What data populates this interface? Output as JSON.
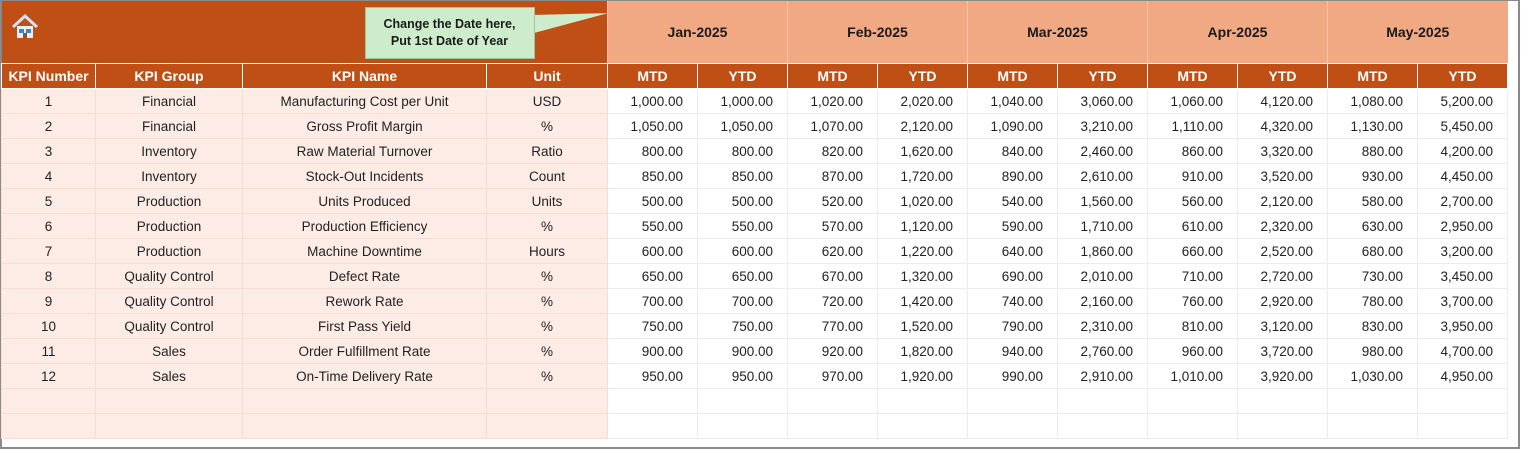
{
  "callout": {
    "line1": "Change the Date here,",
    "line2": "Put 1st Date of Year"
  },
  "icons": {
    "home": "home-icon"
  },
  "colors": {
    "header": "#c04f15",
    "month": "#f1a983",
    "label_bg": "#fdece6",
    "callout": "#cdeccb"
  },
  "months": [
    "Jan-2025",
    "Feb-2025",
    "Mar-2025",
    "Apr-2025",
    "May-2025"
  ],
  "headers": {
    "kpi_number": "KPI Number",
    "kpi_group": "KPI Group",
    "kpi_name": "KPI Name",
    "unit": "Unit",
    "mtd": "MTD",
    "ytd": "YTD"
  },
  "rows": [
    {
      "num": "1",
      "group": "Financial",
      "name": "Manufacturing Cost per Unit",
      "unit": "USD",
      "values": [
        "1,000.00",
        "1,000.00",
        "1,020.00",
        "2,020.00",
        "1,040.00",
        "3,060.00",
        "1,060.00",
        "4,120.00",
        "1,080.00",
        "5,200.00"
      ]
    },
    {
      "num": "2",
      "group": "Financial",
      "name": "Gross Profit Margin",
      "unit": "%",
      "values": [
        "1,050.00",
        "1,050.00",
        "1,070.00",
        "2,120.00",
        "1,090.00",
        "3,210.00",
        "1,110.00",
        "4,320.00",
        "1,130.00",
        "5,450.00"
      ]
    },
    {
      "num": "3",
      "group": "Inventory",
      "name": "Raw Material Turnover",
      "unit": "Ratio",
      "values": [
        "800.00",
        "800.00",
        "820.00",
        "1,620.00",
        "840.00",
        "2,460.00",
        "860.00",
        "3,320.00",
        "880.00",
        "4,200.00"
      ]
    },
    {
      "num": "4",
      "group": "Inventory",
      "name": "Stock-Out Incidents",
      "unit": "Count",
      "values": [
        "850.00",
        "850.00",
        "870.00",
        "1,720.00",
        "890.00",
        "2,610.00",
        "910.00",
        "3,520.00",
        "930.00",
        "4,450.00"
      ]
    },
    {
      "num": "5",
      "group": "Production",
      "name": "Units Produced",
      "unit": "Units",
      "values": [
        "500.00",
        "500.00",
        "520.00",
        "1,020.00",
        "540.00",
        "1,560.00",
        "560.00",
        "2,120.00",
        "580.00",
        "2,700.00"
      ]
    },
    {
      "num": "6",
      "group": "Production",
      "name": "Production Efficiency",
      "unit": "%",
      "values": [
        "550.00",
        "550.00",
        "570.00",
        "1,120.00",
        "590.00",
        "1,710.00",
        "610.00",
        "2,320.00",
        "630.00",
        "2,950.00"
      ]
    },
    {
      "num": "7",
      "group": "Production",
      "name": "Machine Downtime",
      "unit": "Hours",
      "values": [
        "600.00",
        "600.00",
        "620.00",
        "1,220.00",
        "640.00",
        "1,860.00",
        "660.00",
        "2,520.00",
        "680.00",
        "3,200.00"
      ]
    },
    {
      "num": "8",
      "group": "Quality Control",
      "name": "Defect Rate",
      "unit": "%",
      "values": [
        "650.00",
        "650.00",
        "670.00",
        "1,320.00",
        "690.00",
        "2,010.00",
        "710.00",
        "2,720.00",
        "730.00",
        "3,450.00"
      ]
    },
    {
      "num": "9",
      "group": "Quality Control",
      "name": "Rework Rate",
      "unit": "%",
      "values": [
        "700.00",
        "700.00",
        "720.00",
        "1,420.00",
        "740.00",
        "2,160.00",
        "760.00",
        "2,920.00",
        "780.00",
        "3,700.00"
      ]
    },
    {
      "num": "10",
      "group": "Quality Control",
      "name": "First Pass Yield",
      "unit": "%",
      "values": [
        "750.00",
        "750.00",
        "770.00",
        "1,520.00",
        "790.00",
        "2,310.00",
        "810.00",
        "3,120.00",
        "830.00",
        "3,950.00"
      ]
    },
    {
      "num": "11",
      "group": "Sales",
      "name": "Order Fulfillment Rate",
      "unit": "%",
      "values": [
        "900.00",
        "900.00",
        "920.00",
        "1,820.00",
        "940.00",
        "2,760.00",
        "960.00",
        "3,720.00",
        "980.00",
        "4,700.00"
      ]
    },
    {
      "num": "12",
      "group": "Sales",
      "name": "On-Time Delivery Rate",
      "unit": "%",
      "values": [
        "950.00",
        "950.00",
        "970.00",
        "1,920.00",
        "990.00",
        "2,910.00",
        "1,010.00",
        "3,920.00",
        "1,030.00",
        "4,950.00"
      ]
    }
  ]
}
